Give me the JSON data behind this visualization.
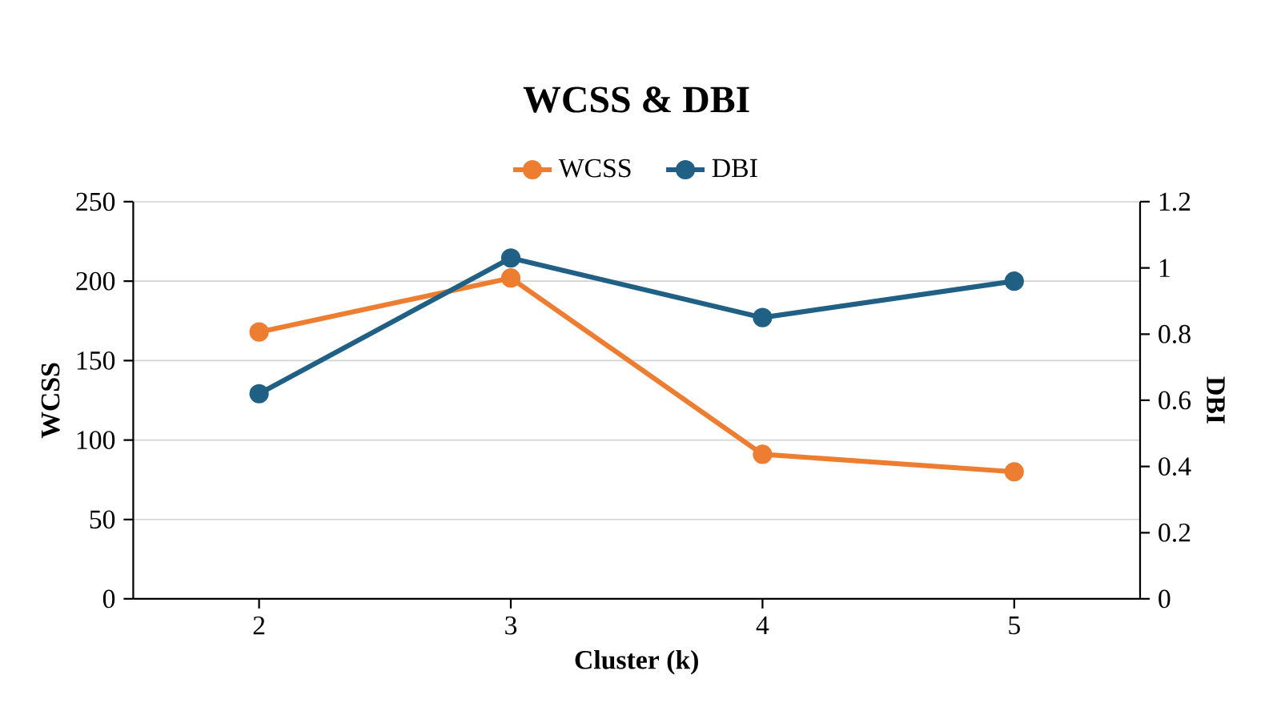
{
  "chart_data": {
    "type": "line",
    "title": "WCSS & DBI",
    "xlabel": "Cluster (k)",
    "ylabel": "WCSS",
    "y2label": "DBI",
    "categories": [
      "2",
      "3",
      "4",
      "5"
    ],
    "series": [
      {
        "name": "WCSS",
        "color": "#ed7d31",
        "values": [
          168,
          202,
          91,
          80
        ]
      },
      {
        "name": "DBI",
        "color": "#1f6084",
        "values": [
          0.62,
          1.03,
          0.85,
          0.96
        ],
        "axis": "y2"
      }
    ],
    "ylim": [
      0,
      250
    ],
    "yticks": [
      0,
      50,
      100,
      150,
      200,
      250
    ],
    "y2lim": [
      0,
      1.2
    ],
    "y2ticks": [
      0,
      0.2,
      0.4,
      0.6,
      0.8,
      1,
      1.2
    ],
    "grid": "y",
    "legend": "top",
    "marker": "circle",
    "line_style": "solid"
  }
}
